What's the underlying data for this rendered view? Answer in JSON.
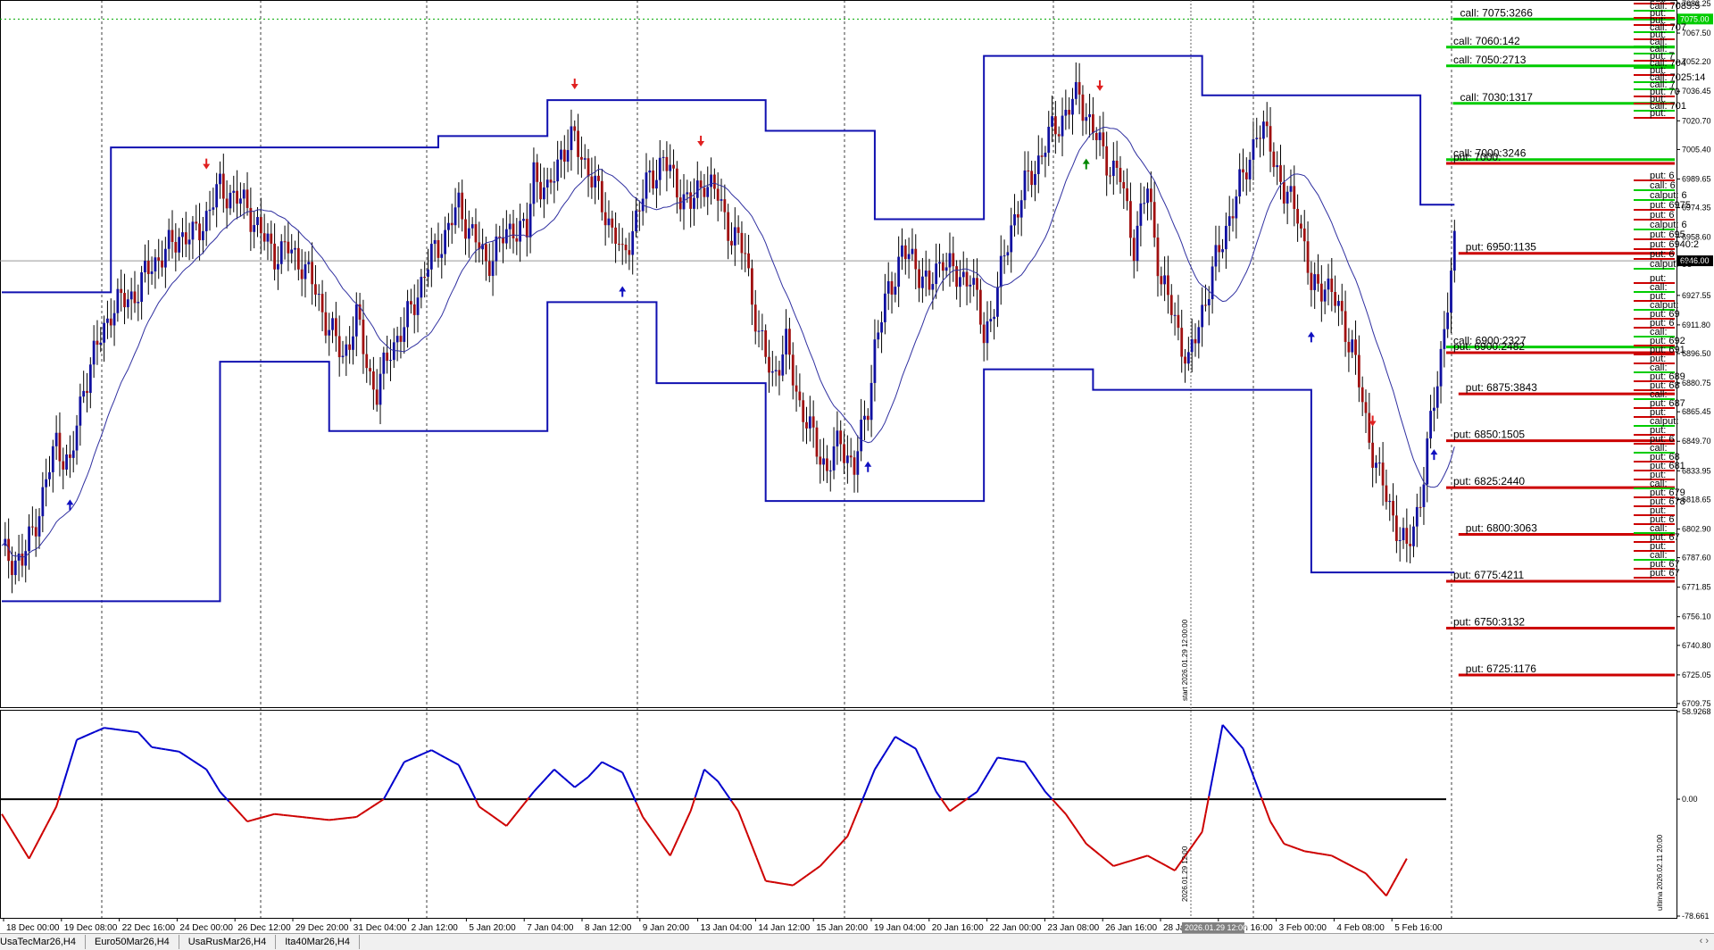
{
  "chart_data": [
    {
      "type": "candlestick",
      "x_labels": [
        "18 Dec 00:00",
        "19 Dec 08:00",
        "22 Dec 16:00",
        "24 Dec 00:00",
        "26 Dec 12:00",
        "29 Dec 20:00",
        "31 Dec 04:00",
        "2 Jan 12:00",
        "5 Jan 20:00",
        "7 Jan 04:00",
        "8 Jan 12:00",
        "9 Jan 20:00",
        "13 Jan 04:00",
        "14 Jan 12:00",
        "15 Jan 20:00",
        "19 Jan 04:00",
        "20 Jan 16:00",
        "22 Jan 00:00",
        "23 Jan 08:00",
        "26 Jan 16:00",
        "28 Jan",
        "30 Jan 16:00",
        "3 Feb 00:00",
        "4 Feb 08:00",
        "5 Feb 16:00"
      ],
      "x_highlight_label": "2026.01.29 12:00",
      "y_ticks": [
        "7083.25",
        "7075.00",
        "7067.50",
        "7052.20",
        "7036.45",
        "7020.70",
        "7005.40",
        "6989.65",
        "6974.35",
        "6958.60",
        "6946.00",
        "6927.55",
        "6911.80",
        "6896.50",
        "6880.75",
        "6865.45",
        "6849.70",
        "6833.95",
        "6818.65",
        "6802.90",
        "6787.60",
        "6771.85",
        "6756.10",
        "6740.80",
        "6725.05",
        "6709.75"
      ],
      "ylim": [
        6709.75,
        7083.25
      ],
      "current_price": "6946.00",
      "highlight_level": "7075.00",
      "close_path": [
        [
          0,
          6790
        ],
        [
          6,
          6785
        ],
        [
          12,
          6820
        ],
        [
          16,
          6850
        ],
        [
          20,
          6835
        ],
        [
          24,
          6880
        ],
        [
          28,
          6900
        ],
        [
          32,
          6920
        ],
        [
          36,
          6925
        ],
        [
          40,
          6930
        ],
        [
          44,
          6945
        ],
        [
          48,
          6950
        ],
        [
          52,
          6960
        ],
        [
          56,
          6958
        ],
        [
          60,
          6970
        ],
        [
          64,
          6985
        ],
        [
          68,
          6980
        ],
        [
          72,
          6975
        ],
        [
          76,
          6960
        ],
        [
          80,
          6950
        ],
        [
          84,
          6952
        ],
        [
          88,
          6945
        ],
        [
          92,
          6930
        ],
        [
          96,
          6910
        ],
        [
          100,
          6895
        ],
        [
          104,
          6915
        ],
        [
          108,
          6885
        ],
        [
          110,
          6875
        ],
        [
          114,
          6900
        ],
        [
          118,
          6910
        ],
        [
          122,
          6930
        ],
        [
          126,
          6948
        ],
        [
          130,
          6960
        ],
        [
          134,
          6975
        ],
        [
          138,
          6960
        ],
        [
          142,
          6945
        ],
        [
          146,
          6955
        ],
        [
          150,
          6965
        ],
        [
          154,
          6960
        ],
        [
          156,
          6995
        ],
        [
          160,
          6980
        ],
        [
          164,
          7005
        ],
        [
          168,
          7010
        ],
        [
          172,
          6995
        ],
        [
          176,
          6975
        ],
        [
          180,
          6960
        ],
        [
          182,
          6945
        ],
        [
          186,
          6970
        ],
        [
          190,
          6990
        ],
        [
          194,
          7000
        ],
        [
          198,
          6985
        ],
        [
          202,
          6975
        ],
        [
          206,
          6990
        ],
        [
          210,
          6980
        ],
        [
          214,
          6960
        ],
        [
          218,
          6950
        ],
        [
          222,
          6905
        ],
        [
          226,
          6885
        ],
        [
          230,
          6900
        ],
        [
          234,
          6870
        ],
        [
          238,
          6850
        ],
        [
          242,
          6835
        ],
        [
          246,
          6850
        ],
        [
          250,
          6835
        ],
        [
          254,
          6870
        ],
        [
          256,
          6900
        ],
        [
          260,
          6930
        ],
        [
          264,
          6950
        ],
        [
          268,
          6945
        ],
        [
          272,
          6930
        ],
        [
          276,
          6950
        ],
        [
          280,
          6935
        ],
        [
          284,
          6940
        ],
        [
          288,
          6905
        ],
        [
          292,
          6930
        ],
        [
          296,
          6965
        ],
        [
          300,
          6985
        ],
        [
          304,
          7000
        ],
        [
          308,
          7015
        ],
        [
          312,
          7025
        ],
        [
          316,
          7035
        ],
        [
          320,
          7015
        ],
        [
          324,
          7000
        ],
        [
          328,
          6990
        ],
        [
          332,
          6955
        ],
        [
          336,
          6985
        ],
        [
          340,
          6935
        ],
        [
          344,
          6915
        ],
        [
          348,
          6890
        ],
        [
          352,
          6920
        ],
        [
          356,
          6945
        ],
        [
          360,
          6970
        ],
        [
          364,
          6990
        ],
        [
          368,
          7015
        ],
        [
          372,
          7010
        ],
        [
          376,
          6980
        ],
        [
          380,
          6975
        ],
        [
          384,
          6930
        ],
        [
          388,
          6935
        ],
        [
          392,
          6920
        ],
        [
          396,
          6900
        ],
        [
          400,
          6860
        ],
        [
          404,
          6830
        ],
        [
          408,
          6810
        ],
        [
          412,
          6790
        ],
        [
          416,
          6820
        ],
        [
          420,
          6870
        ],
        [
          426,
          6952
        ]
      ]
    },
    {
      "type": "line",
      "title": "",
      "ylim": [
        -78.661,
        58.9268
      ],
      "y_ticks": [
        "58.9268",
        "0.00",
        "-78.661"
      ],
      "zero_line": 0,
      "colors": {
        "positive": "#0000cd",
        "negative": "#cd0000"
      },
      "vertical_label": "ultima 2026.02.11 20:00",
      "x_highlight_label": "2026.01.29 12:00",
      "points": [
        [
          0,
          -10
        ],
        [
          8,
          -40
        ],
        [
          16,
          -5
        ],
        [
          22,
          40
        ],
        [
          30,
          48
        ],
        [
          40,
          45
        ],
        [
          44,
          35
        ],
        [
          52,
          32
        ],
        [
          60,
          20
        ],
        [
          64,
          5
        ],
        [
          72,
          -15
        ],
        [
          80,
          -10
        ],
        [
          88,
          -12
        ],
        [
          96,
          -14
        ],
        [
          104,
          -12
        ],
        [
          112,
          0
        ],
        [
          118,
          25
        ],
        [
          126,
          33
        ],
        [
          134,
          23
        ],
        [
          140,
          -5
        ],
        [
          148,
          -18
        ],
        [
          156,
          5
        ],
        [
          162,
          20
        ],
        [
          168,
          8
        ],
        [
          172,
          15
        ],
        [
          176,
          25
        ],
        [
          182,
          18
        ],
        [
          188,
          -12
        ],
        [
          196,
          -38
        ],
        [
          202,
          -8
        ],
        [
          206,
          20
        ],
        [
          210,
          12
        ],
        [
          216,
          -8
        ],
        [
          224,
          -55
        ],
        [
          232,
          -58
        ],
        [
          240,
          -45
        ],
        [
          248,
          -25
        ],
        [
          256,
          20
        ],
        [
          262,
          42
        ],
        [
          268,
          34
        ],
        [
          274,
          5
        ],
        [
          278,
          -8
        ],
        [
          286,
          5
        ],
        [
          292,
          28
        ],
        [
          300,
          25
        ],
        [
          306,
          5
        ],
        [
          312,
          -10
        ],
        [
          318,
          -30
        ],
        [
          326,
          -45
        ],
        [
          336,
          -38
        ],
        [
          344,
          -48
        ],
        [
          352,
          -22
        ],
        [
          358,
          50
        ],
        [
          364,
          34
        ],
        [
          372,
          -15
        ],
        [
          376,
          -30
        ],
        [
          382,
          -35
        ],
        [
          390,
          -38
        ],
        [
          400,
          -50
        ],
        [
          406,
          -65
        ],
        [
          412,
          -40
        ]
      ]
    }
  ],
  "overlay": {
    "start_label": "start 2026.01.29 12:00:00",
    "level_lines": [
      {
        "label": "call: 7075:3266",
        "value": 7075,
        "color": "#00cc00"
      },
      {
        "label": "call: 7060:142",
        "value": 7060,
        "color": "#00cc00"
      },
      {
        "label": "call: 7050:2713",
        "value": 7050,
        "color": "#00cc00"
      },
      {
        "label": "call: 7030:1317",
        "value": 7030,
        "color": "#00cc00"
      },
      {
        "label": "call: 7000:3246",
        "value": 7000,
        "color": "#00cc00"
      },
      {
        "label": "put: 7000:",
        "value": 6998,
        "color": "#cc0000"
      },
      {
        "label": "put: 6950:1135",
        "value": 6950,
        "color": "#cc0000"
      },
      {
        "label": "call: 6900:2327",
        "value": 6900,
        "color": "#00cc00"
      },
      {
        "label": "put: 6900:2482",
        "value": 6897,
        "color": "#cc0000"
      },
      {
        "label": "put: 6875:3843",
        "value": 6875,
        "color": "#cc0000"
      },
      {
        "label": "put: 6850:1505",
        "value": 6850,
        "color": "#cc0000"
      },
      {
        "label": "put: 6825:2440",
        "value": 6825,
        "color": "#cc0000"
      },
      {
        "label": "put: 6800:3063",
        "value": 6800,
        "color": "#cc0000"
      },
      {
        "label": "put: 6775:4211",
        "value": 6775,
        "color": "#cc0000"
      },
      {
        "label": "put: 6750:3132",
        "value": 6750,
        "color": "#cc0000"
      },
      {
        "label": "put: 6725:1176",
        "value": 6725,
        "color": "#cc0000"
      }
    ],
    "stack_labels": [
      "put:",
      "call:",
      "put:",
      "calput:",
      "put: 69",
      "put: 6",
      "call:",
      "put: 692",
      "put: 691",
      "put:",
      "call:",
      "put: 689",
      "put: 68",
      "call:",
      "put: 687",
      "put:",
      "calput:",
      "put:",
      "put: 6",
      "call:",
      "put: 68",
      "put: 681",
      "put:",
      "call:",
      "put: 679",
      "put: 678",
      "put:",
      "put: 6",
      "call:",
      "put: 67",
      "put:",
      "call:",
      "put: 67",
      "put: 67"
    ],
    "stack_labels_top": [
      "put:",
      "call: 7085:5",
      "put:",
      "put:",
      "call: 707",
      "put:",
      "call:",
      "call:",
      "put: 7",
      "call: 704",
      "put:",
      "call: 7025:14",
      "call: 7",
      "put: 70",
      "put:",
      "call: 701",
      "put:"
    ],
    "stack_labels_mid": [
      "put: 6",
      "call: 6",
      "calput: 6",
      "put: 6975",
      "put: 6",
      "calput: 6",
      "put: 695",
      "put: 6940:2",
      "put: 6",
      "calput: 69"
    ]
  },
  "tabs": [
    "UsaTecMar26,H4",
    "Euro50Mar26,H4",
    "UsaRusMar26,H4",
    "Ita40Mar26,H4"
  ],
  "scroll_arrows": "‹ ›"
}
